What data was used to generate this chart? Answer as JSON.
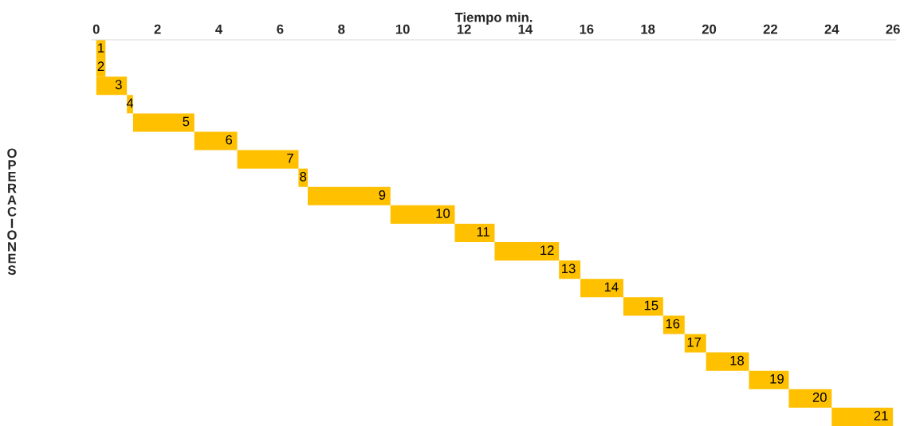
{
  "chart_data": {
    "type": "bar",
    "orientation": "horizontal",
    "xlabel": "Tiempo min.",
    "ylabel": "OPERACIONES",
    "categories": [
      "1",
      "2",
      "3",
      "4",
      "5",
      "6",
      "7",
      "8",
      "9",
      "10",
      "11",
      "12",
      "13",
      "14",
      "15",
      "16",
      "17",
      "18",
      "19",
      "20",
      "21"
    ],
    "base": [
      0,
      0,
      0,
      1.0,
      1.2,
      3.2,
      4.6,
      6.6,
      6.9,
      9.6,
      11.7,
      13.0,
      15.1,
      15.8,
      17.2,
      18.5,
      19.2,
      19.9,
      21.3,
      22.6,
      24.0
    ],
    "values": [
      0.3,
      0.3,
      1.0,
      0.2,
      2.0,
      1.4,
      2.0,
      0.3,
      2.7,
      2.1,
      1.3,
      2.1,
      0.7,
      1.4,
      1.3,
      0.7,
      0.7,
      1.4,
      1.3,
      1.4,
      2.0
    ],
    "color": "#ffc000",
    "xlim": [
      -0.15,
      26.1
    ],
    "xticks": [
      0,
      2,
      4,
      6,
      8,
      10,
      12,
      14,
      16,
      18,
      20,
      22,
      24,
      26
    ],
    "tick_labels": "x",
    "grid": false
  }
}
